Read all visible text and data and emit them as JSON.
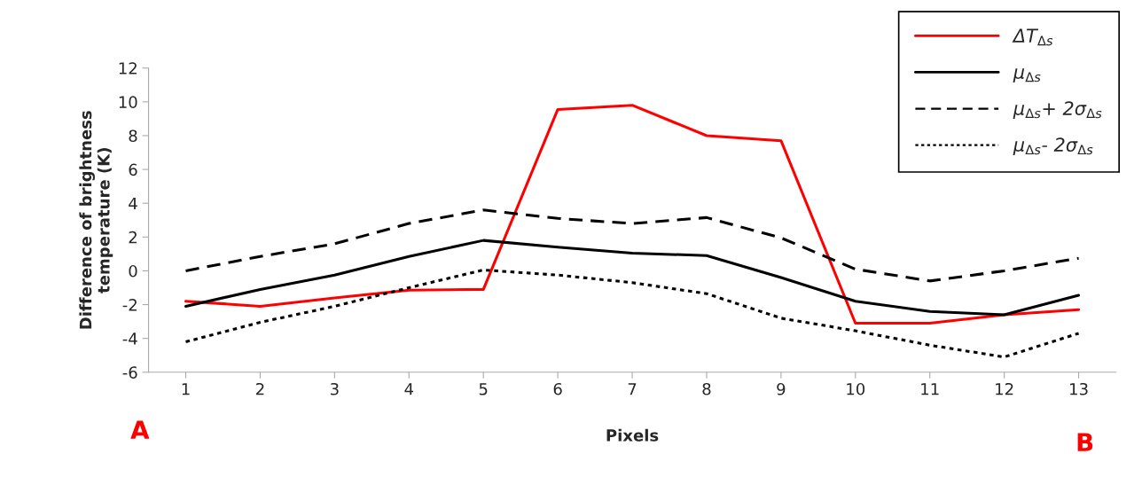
{
  "chart_data": {
    "type": "line",
    "xlabel": "Pixels",
    "ylabel": "Difference of brightness\ntemperature (K)",
    "categories": [
      "1",
      "2",
      "3",
      "4",
      "5",
      "6",
      "7",
      "8",
      "9",
      "10",
      "11",
      "12",
      "13"
    ],
    "series": [
      {
        "name": "ΔT$_{Δs}$",
        "color": "#ff0000",
        "line_style": "solid",
        "values": [
          -1.8,
          -2.1,
          -1.6,
          -1.15,
          -1.1,
          9.55,
          9.8,
          8.0,
          7.7,
          -3.1,
          -3.1,
          -2.6,
          -2.3
        ]
      },
      {
        "name": "μ$_{Δs}$",
        "color": "#000000",
        "line_style": "solid",
        "values": [
          -2.1,
          -1.1,
          -0.25,
          0.85,
          1.8,
          1.4,
          1.05,
          0.9,
          -0.4,
          -1.8,
          -2.4,
          -2.6,
          -1.45
        ]
      },
      {
        "name": "μ$_{Δs}$+ 2σ$_{Δs}$",
        "color": "#000000",
        "line_style": "dashed",
        "values": [
          0.0,
          0.85,
          1.6,
          2.8,
          3.6,
          3.1,
          2.8,
          3.15,
          1.95,
          0.1,
          -0.6,
          0.0,
          0.75
        ]
      },
      {
        "name": "μ$_{Δs}$- 2σ$_{Δs}$",
        "color": "#000000",
        "line_style": "dotted",
        "values": [
          -4.2,
          -3.05,
          -2.1,
          -1.0,
          0.05,
          -0.25,
          -0.7,
          -1.35,
          -2.8,
          -3.55,
          -4.4,
          -5.1,
          -3.7
        ]
      }
    ],
    "ylim": [
      -6,
      12
    ],
    "yticks": [
      -6,
      -4,
      -2,
      0,
      2,
      4,
      6,
      8,
      10,
      12
    ],
    "grid": false,
    "legend": "top right",
    "marker": "none",
    "annotations": [
      "A",
      "B"
    ]
  }
}
